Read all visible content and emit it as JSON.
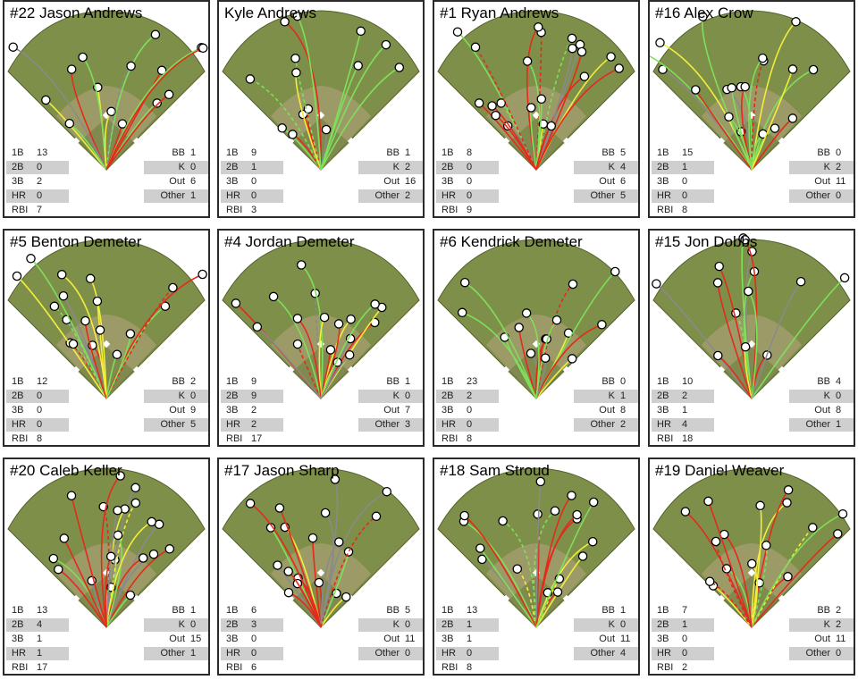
{
  "players": [
    {
      "name": "#22 Jason Andrews",
      "stats": {
        "1B": "13",
        "2B": "0",
        "3B": "2",
        "HR": "0",
        "RBI": "7",
        "BB": "1",
        "K": "0",
        "Out": "6",
        "Other": "1"
      }
    },
    {
      "name": "Kyle Andrews",
      "stats": {
        "1B": "9",
        "2B": "1",
        "3B": "0",
        "HR": "0",
        "RBI": "3",
        "BB": "1",
        "K": "2",
        "Out": "16",
        "Other": "2"
      }
    },
    {
      "name": "#1 Ryan Andrews",
      "stats": {
        "1B": "8",
        "2B": "0",
        "3B": "0",
        "HR": "0",
        "RBI": "9",
        "BB": "5",
        "K": "4",
        "Out": "6",
        "Other": "5"
      }
    },
    {
      "name": "#16 Alex Crow",
      "stats": {
        "1B": "15",
        "2B": "1",
        "3B": "0",
        "HR": "0",
        "RBI": "8",
        "BB": "0",
        "K": "2",
        "Out": "11",
        "Other": "0"
      }
    },
    {
      "name": "#5 Benton Demeter",
      "stats": {
        "1B": "12",
        "2B": "0",
        "3B": "0",
        "HR": "0",
        "RBI": "8",
        "BB": "2",
        "K": "0",
        "Out": "9",
        "Other": "5"
      }
    },
    {
      "name": "#4 Jordan Demeter",
      "stats": {
        "1B": "9",
        "2B": "9",
        "3B": "2",
        "HR": "2",
        "RBI": "17",
        "BB": "1",
        "K": "0",
        "Out": "7",
        "Other": "3"
      }
    },
    {
      "name": "#6 Kendrick Demeter",
      "stats": {
        "1B": "23",
        "2B": "2",
        "3B": "0",
        "HR": "0",
        "RBI": "8",
        "BB": "0",
        "K": "1",
        "Out": "8",
        "Other": "2"
      }
    },
    {
      "name": "#15 Jon Dobbs",
      "stats": {
        "1B": "10",
        "2B": "2",
        "3B": "1",
        "HR": "4",
        "RBI": "18",
        "BB": "4",
        "K": "0",
        "Out": "8",
        "Other": "1"
      }
    },
    {
      "name": "#20 Caleb Keller",
      "stats": {
        "1B": "13",
        "2B": "4",
        "3B": "1",
        "HR": "1",
        "RBI": "17",
        "BB": "1",
        "K": "0",
        "Out": "15",
        "Other": "1"
      }
    },
    {
      "name": "#17 Jason Sharp",
      "stats": {
        "1B": "6",
        "2B": "3",
        "3B": "0",
        "HR": "0",
        "RBI": "6",
        "BB": "5",
        "K": "0",
        "Out": "11",
        "Other": "0"
      }
    },
    {
      "name": "#18 Sam Stroud",
      "stats": {
        "1B": "13",
        "2B": "1",
        "3B": "1",
        "HR": "0",
        "RBI": "8",
        "BB": "1",
        "K": "0",
        "Out": "11",
        "Other": "4"
      }
    },
    {
      "name": "#19 Daniel Weaver",
      "stats": {
        "1B": "7",
        "2B": "1",
        "3B": "0",
        "HR": "0",
        "RBI": "2",
        "BB": "2",
        "K": "2",
        "Out": "11",
        "Other": "0"
      }
    }
  ],
  "stat_labels": {
    "1B": "1B",
    "2B": "2B",
    "3B": "3B",
    "HR": "HR",
    "RBI": "RBI",
    "BB": "BB",
    "K": "K",
    "Out": "Out",
    "Other": "Other"
  },
  "colors": {
    "grass": "#7e8f4a",
    "grass_dark": "#6b7b3b",
    "infield": "#a79f72",
    "foul_line": "#ffffff",
    "hit_single": "#7ee05a",
    "hit_extra": "#f2ee3a",
    "hit_out": "#e42a1c",
    "hit_other": "#8a8a8a",
    "marker_fill": "#ffffff",
    "marker_stroke": "#000000",
    "stat_shade": "#cfcfcf"
  }
}
